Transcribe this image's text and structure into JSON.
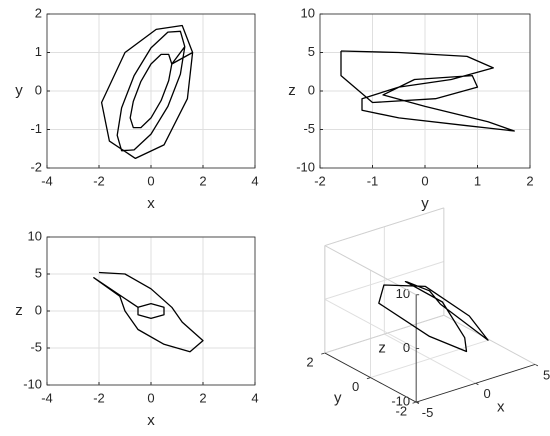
{
  "chart_data": [
    {
      "type": "line",
      "xlabel": "x",
      "ylabel": "y",
      "color": "#000000",
      "grid": true,
      "x": [
        1.3,
        1.13,
        0.65,
        0,
        -0.65,
        -1.13,
        -1.3,
        -1.13,
        -0.65,
        0,
        0.65,
        1.13,
        1.3,
        0.8,
        0.68,
        0.39,
        0,
        -0.39,
        -0.68,
        -0.8,
        -0.68,
        -0.39,
        0,
        0.39,
        0.68,
        0.8,
        1.6,
        1.2,
        0.2,
        -1.0,
        -1.9,
        -1.6,
        -0.6,
        0.5,
        1.4,
        1.6
      ],
      "values": [
        1.15,
        1.55,
        1.53,
        1.12,
        0.4,
        -0.44,
        -1.15,
        -1.55,
        -1.53,
        -1.12,
        -0.4,
        0.44,
        1.15,
        0.7,
        0.95,
        0.95,
        0.7,
        0.25,
        -0.27,
        -0.7,
        -0.95,
        -0.95,
        -0.7,
        -0.25,
        0.27,
        0.7,
        1.0,
        1.7,
        1.6,
        1.0,
        -0.3,
        -1.3,
        -1.75,
        -1.4,
        -0.2,
        1.0
      ],
      "xlim": [
        -4,
        4
      ],
      "xticks": [
        -4,
        -2,
        0,
        2,
        4
      ],
      "ylim": [
        -2,
        2
      ],
      "yticks": [
        -2,
        -1,
        0,
        1,
        2
      ]
    },
    {
      "type": "line",
      "xlabel": "y",
      "ylabel": "z",
      "color": "#000000",
      "grid": true,
      "x": [
        -1.6,
        -0.5,
        0.8,
        1.3,
        0.5,
        -0.5,
        -1.2,
        -1.2,
        -0.5,
        0.8,
        1.7,
        1.2,
        0,
        -0.8,
        -0.2,
        0.9,
        1.0,
        0.2,
        -1.0,
        -1.6,
        -1.6
      ],
      "values": [
        5.2,
        5.0,
        4.5,
        3.0,
        1.5,
        0.5,
        -1.0,
        -2.5,
        -3.5,
        -4.5,
        -5.2,
        -4.0,
        -2.0,
        -0.5,
        1.5,
        2.0,
        0.5,
        -1.0,
        -1.5,
        2.0,
        5.2
      ],
      "xlim": [
        -2,
        2
      ],
      "xticks": [
        -2,
        -1,
        0,
        1,
        2
      ],
      "ylim": [
        -10,
        10
      ],
      "yticks": [
        -10,
        -5,
        0,
        5,
        10
      ]
    },
    {
      "type": "line",
      "xlabel": "x",
      "ylabel": "z",
      "color": "#000000",
      "grid": true,
      "x": [
        -2,
        -1,
        0,
        0.8,
        1.2,
        2,
        1.5,
        0.5,
        -0.5,
        -1,
        -1.2,
        -2.2,
        -0.5,
        0,
        0.5,
        0.5,
        0,
        -0.5,
        -0.5
      ],
      "values": [
        5.2,
        5,
        3,
        0.5,
        -1.5,
        -4,
        -5.5,
        -4.5,
        -2.5,
        0,
        2,
        4.5,
        0.5,
        1,
        0.5,
        -0.5,
        -1,
        -0.5,
        0.5
      ],
      "xlim": [
        -4,
        4
      ],
      "xticks": [
        -4,
        -2,
        0,
        2,
        4
      ],
      "ylim": [
        -10,
        10
      ],
      "yticks": [
        -10,
        -5,
        0,
        5,
        10
      ]
    },
    {
      "type": "line3d",
      "xlabel": "x",
      "ylabel": "y",
      "zlabel": "z",
      "color": "#000000",
      "grid": true,
      "x": [
        -2,
        -1,
        0,
        1,
        2,
        1,
        0,
        -1,
        -2,
        -1,
        0,
        1,
        2,
        -2
      ],
      "y": [
        -1.5,
        -0.5,
        1,
        1.6,
        0.5,
        -1,
        -1.6,
        -0.5,
        1.2,
        1.5,
        0.2,
        -1.2,
        -1.5,
        -1.5
      ],
      "z": [
        5,
        4.5,
        2,
        0,
        -2,
        -4.5,
        -5,
        -4,
        -1,
        1,
        3,
        0,
        -4.5,
        5
      ],
      "xlim": [
        -5,
        5
      ],
      "xticks": [
        -5,
        0,
        5
      ],
      "ylim": [
        -2,
        2
      ],
      "yticks": [
        -2,
        0,
        2
      ],
      "zlim": [
        -10,
        10
      ],
      "zticks": [
        -10,
        0,
        10
      ]
    }
  ]
}
